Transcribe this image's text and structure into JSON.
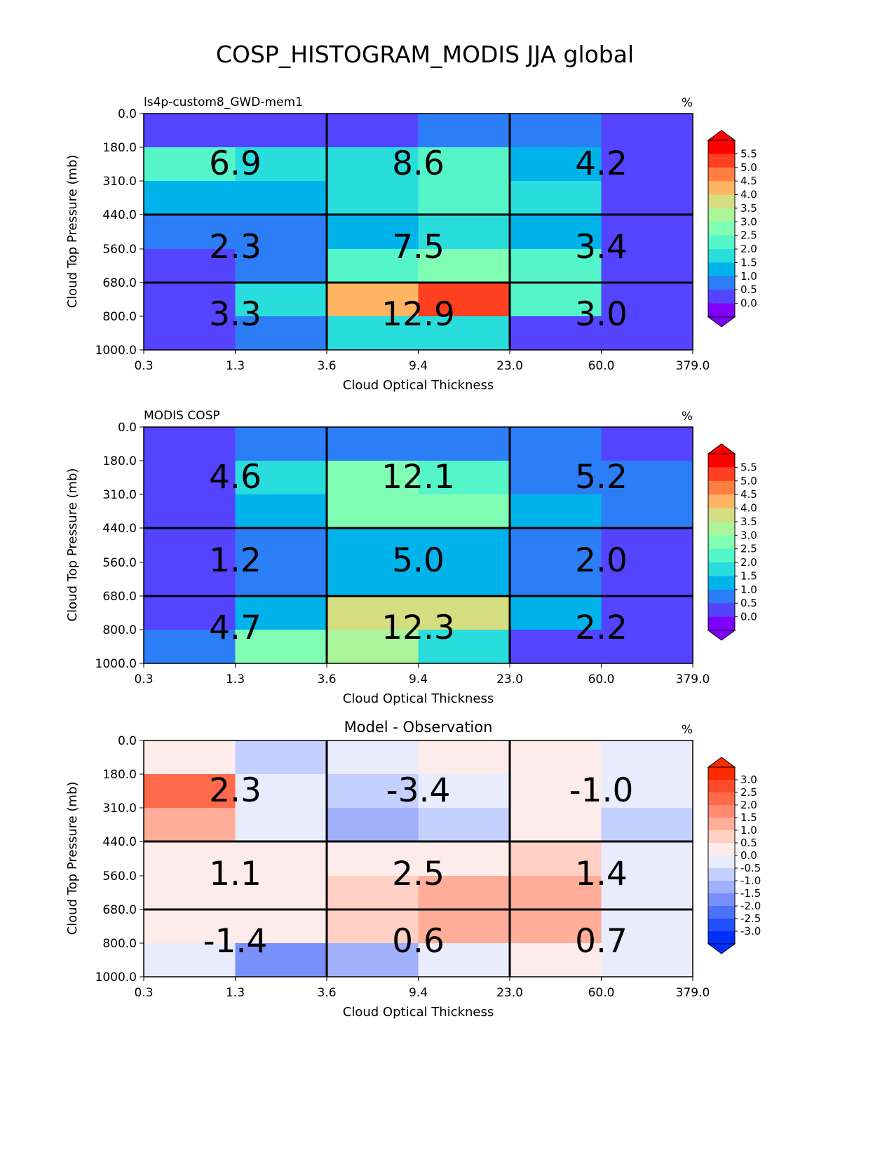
{
  "chart_data": {
    "type": "heatmap",
    "title": "COSP_HISTOGRAM_MODIS JJA global",
    "x_ticks": [
      "0.3",
      "1.3",
      "3.6",
      "9.4",
      "23.0",
      "60.0",
      "379.0"
    ],
    "y_ticks": [
      "0.0",
      "180.0",
      "310.0",
      "440.0",
      "560.0",
      "680.0",
      "800.0",
      "1000.0"
    ],
    "xlabel": "Cloud Optical Thickness",
    "ylabel": "Cloud Top Pressure (mb)",
    "panels": [
      {
        "left_title": "ls4p-custom8_GWD-mem1",
        "center_title": "",
        "units": "%",
        "cmap": "rainbow",
        "cbar_labels": [
          "5.5",
          "5.0",
          "4.5",
          "4.0",
          "3.5",
          "3.0",
          "2.5",
          "2.0",
          "1.5",
          "1.0",
          "0.5",
          "0.0"
        ],
        "cbar_colors": [
          "#ff0000",
          "#ff4020",
          "#ff7e41",
          "#feb462",
          "#d4dd80",
          "#aaf59a",
          "#80ffb4",
          "#54f5c8",
          "#2adddd",
          "#00b4eb",
          "#2c7ef7",
          "#5544ff",
          "#8000ff"
        ],
        "cell_values": [
          [
            0.25,
            0.25,
            0.25,
            0.75,
            0.75,
            0.25
          ],
          [
            2.25,
            1.75,
            1.75,
            2.25,
            1.25,
            0.25
          ],
          [
            1.25,
            1.25,
            1.75,
            2.25,
            1.75,
            0.25
          ],
          [
            0.75,
            0.75,
            1.25,
            1.75,
            1.25,
            0.25
          ],
          [
            0.25,
            0.75,
            2.25,
            2.75,
            2.25,
            0.25
          ],
          [
            0.25,
            1.75,
            4.25,
            5.25,
            2.25,
            0.25
          ],
          [
            0.25,
            0.75,
            1.75,
            1.75,
            0.25,
            0.25
          ]
        ],
        "annotations": [
          [
            "6.9",
            "8.6",
            "4.2"
          ],
          [
            "2.3",
            "7.5",
            "3.4"
          ],
          [
            "3.3",
            "12.9",
            "3.0"
          ]
        ]
      },
      {
        "left_title": "MODIS COSP",
        "center_title": "",
        "units": "%",
        "cmap": "rainbow",
        "cbar_labels": [
          "5.5",
          "5.0",
          "4.5",
          "4.0",
          "3.5",
          "3.0",
          "2.5",
          "2.0",
          "1.5",
          "1.0",
          "0.5",
          "0.0"
        ],
        "cbar_colors": [
          "#ff0000",
          "#ff4020",
          "#ff7e41",
          "#feb462",
          "#d4dd80",
          "#aaf59a",
          "#80ffb4",
          "#54f5c8",
          "#2adddd",
          "#00b4eb",
          "#2c7ef7",
          "#5544ff",
          "#8000ff"
        ],
        "cell_values": [
          [
            0.25,
            0.75,
            0.75,
            0.75,
            0.75,
            0.25
          ],
          [
            0.25,
            1.75,
            2.75,
            2.25,
            0.75,
            0.75
          ],
          [
            0.25,
            1.25,
            2.75,
            2.75,
            1.25,
            0.75
          ],
          [
            0.25,
            0.75,
            1.25,
            1.25,
            0.75,
            0.25
          ],
          [
            0.25,
            0.75,
            1.25,
            1.25,
            0.75,
            0.25
          ],
          [
            0.25,
            1.25,
            3.75,
            3.75,
            1.25,
            0.25
          ],
          [
            0.75,
            2.75,
            3.25,
            1.75,
            0.25,
            0.25
          ]
        ],
        "annotations": [
          [
            "4.6",
            "12.1",
            "5.2"
          ],
          [
            "1.2",
            "5.0",
            "2.0"
          ],
          [
            "4.7",
            "12.3",
            "2.2"
          ]
        ]
      },
      {
        "left_title": "",
        "center_title": "Model - Observation",
        "units": "%",
        "cmap": "bwr",
        "cbar_labels": [
          "3.0",
          "2.5",
          "2.0",
          "1.5",
          "1.0",
          "0.5",
          "0.0",
          "-0.5",
          "-1.0",
          "-1.5",
          "-2.0",
          "-2.5",
          "-3.0"
        ],
        "cbar_colors": [
          "#ff2a00",
          "#ff4a2a",
          "#ff6a4c",
          "#ff8a70",
          "#ffac98",
          "#ffcfc4",
          "#fdecea",
          "#e8ecfd",
          "#c4d0fd",
          "#a0b0fb",
          "#7890f9",
          "#4d70f9",
          "#2050f9",
          "#0030ff"
        ],
        "cell_values": [
          [
            0.25,
            -0.75,
            -0.25,
            0.25,
            0.25,
            -0.25
          ],
          [
            2.25,
            -0.25,
            -0.75,
            -0.25,
            0.25,
            -0.25
          ],
          [
            1.25,
            -0.25,
            -1.25,
            -0.75,
            0.25,
            -0.75
          ],
          [
            0.25,
            0.25,
            0.25,
            0.25,
            0.75,
            -0.25
          ],
          [
            0.25,
            0.25,
            0.75,
            1.25,
            1.25,
            -0.25
          ],
          [
            0.25,
            0.25,
            0.75,
            1.25,
            1.25,
            -0.25
          ],
          [
            -0.25,
            -1.75,
            -1.25,
            -0.25,
            0.25,
            -0.25
          ]
        ],
        "annotations": [
          [
            "2.3",
            "-3.4",
            "-1.0"
          ],
          [
            "1.1",
            "2.5",
            "1.4"
          ],
          [
            "-1.4",
            "0.6",
            "0.7"
          ]
        ]
      }
    ]
  }
}
